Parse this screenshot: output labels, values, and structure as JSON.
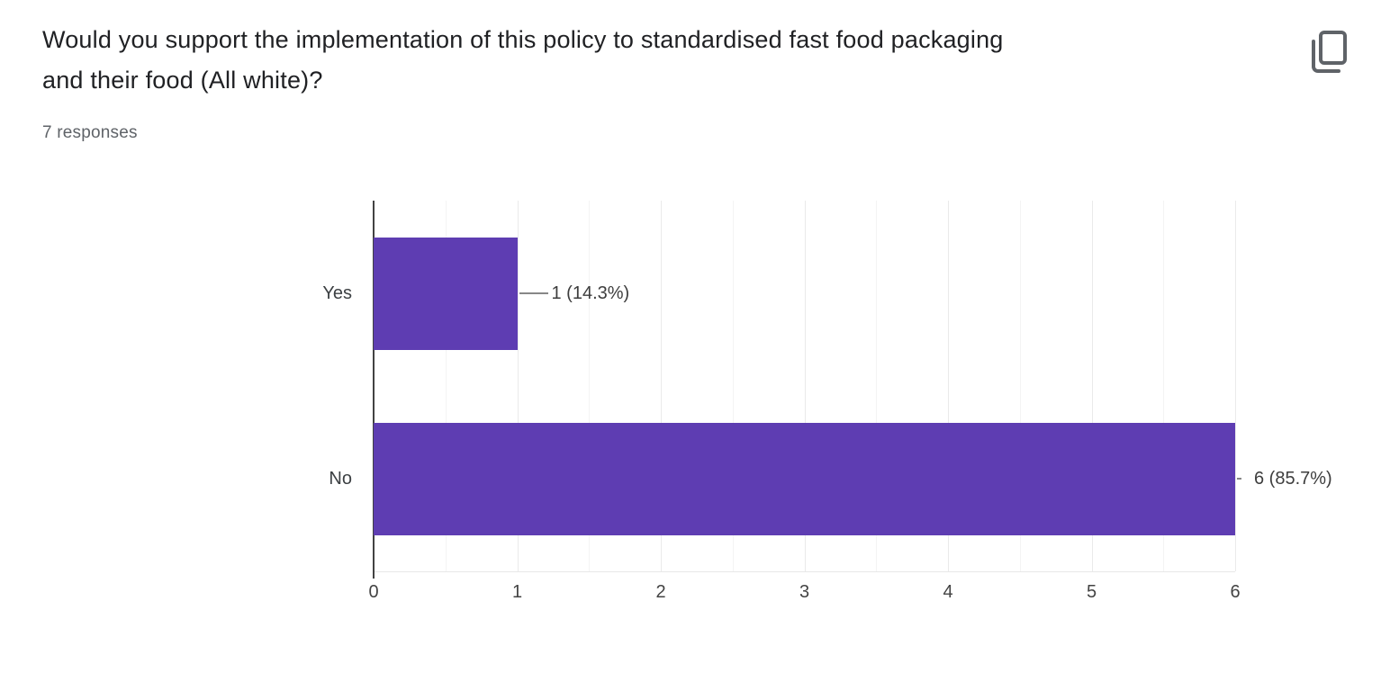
{
  "question": {
    "title_line1": "Would you support the implementation of this policy to standardised fast food packaging",
    "title_line2": "and their food (All white)?",
    "responses_label": "7 responses"
  },
  "toolbar": {
    "copy_button_icon": "copy-icon"
  },
  "chart_data": {
    "type": "bar",
    "orientation": "horizontal",
    "categories": [
      "Yes",
      "No"
    ],
    "values": [
      1,
      6
    ],
    "annotations": [
      "1 (14.3%)",
      "6 (85.7%)"
    ],
    "percentages": [
      14.3,
      85.7
    ],
    "total_responses": 7,
    "xlim": [
      0,
      6
    ],
    "x_ticks": [
      0,
      1,
      2,
      3,
      4,
      5,
      6
    ],
    "grid": true,
    "legend": "none",
    "bar_color": "#5e3db2",
    "axis_color": "#424242",
    "gridline_color": "#eaeaea"
  }
}
